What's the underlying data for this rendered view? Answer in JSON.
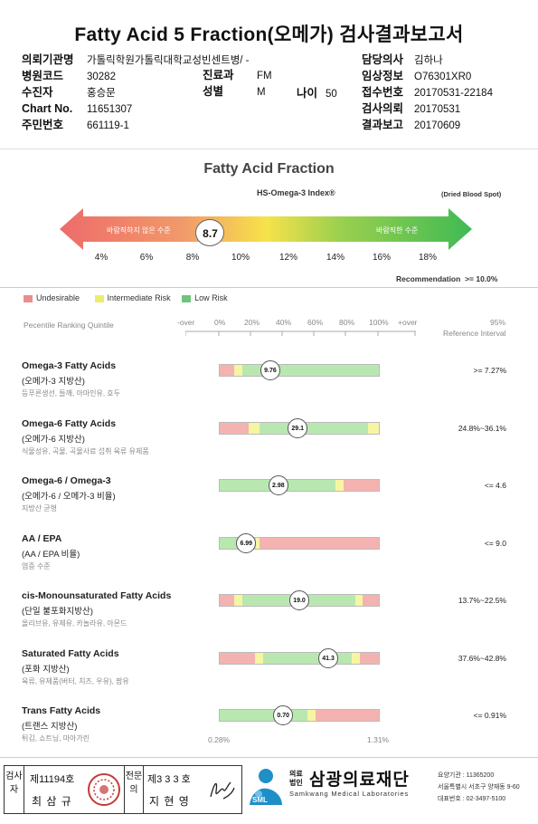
{
  "title": "Fatty Acid 5 Fraction(오메가) 검사결과보고서",
  "header": {
    "left": [
      {
        "label": "의뢰기관명",
        "value": "가톨릭학원가톨릭대학교성빈센트병/ -"
      },
      {
        "label": "병원코드",
        "value": "30282"
      },
      {
        "label": "수진자",
        "value": "홍승문"
      },
      {
        "label": "Chart No.",
        "value": "11651307"
      },
      {
        "label": "주민번호",
        "value": "661119-1"
      }
    ],
    "mid": [
      {
        "label": "진료과",
        "value": "FM"
      },
      {
        "label": "성별",
        "value": "M"
      }
    ],
    "age": {
      "label": "나이",
      "value": "50"
    },
    "right": [
      {
        "label": "담당의사",
        "value": "김하나"
      },
      {
        "label": "임상정보",
        "value": "O76301XR0"
      },
      {
        "label": "접수번호",
        "value": "20170531-22184"
      },
      {
        "label": "검사의뢰",
        "value": "20170531"
      },
      {
        "label": "결과보고",
        "value": "20170609"
      }
    ]
  },
  "fraction": {
    "title": "Fatty Acid Fraction",
    "index_label": "HS-Omega-3 Index®",
    "sample_label": "(Dried Blood Spot)",
    "arrow_left_text": "바람직하지 않은 수준",
    "arrow_right_text": "바람직한 수준",
    "value": "8.7",
    "value_num": 8.7,
    "ticks": [
      "4%",
      "6%",
      "8%",
      "10%",
      "12%",
      "14%",
      "16%",
      "18%"
    ],
    "recommendation_label": "Recommendation",
    "recommendation_value": ">= 10.0%"
  },
  "legend": [
    {
      "label": "Undesirable",
      "color": "#f2a0a0"
    },
    {
      "label": "Intermediate Risk",
      "color": "#f4f07a"
    },
    {
      "label": "Low Risk",
      "color": "#6fc47a"
    }
  ],
  "scale": {
    "title": "Pecentile Ranking Quintile",
    "labels": [
      "-over",
      "0%",
      "20%",
      "40%",
      "60%",
      "80%",
      "100%",
      "+over"
    ],
    "ref_title_1": "95%",
    "ref_title_2": "Reference Interval",
    "bottom_left": "0.28%",
    "bottom_right": "1.31%"
  },
  "colors": {
    "red": "#f4b3b0",
    "yellow": "#f6f5a2",
    "green": "#b8e8b0"
  },
  "rows": [
    {
      "title": "Omega-3 Fatty Acids",
      "sub": "(오메가-3 지방산)",
      "desc": "등푸른생선, 들깨, 아마인유, 호두",
      "segments": [
        [
          "red",
          9
        ],
        [
          "yellow",
          5
        ],
        [
          "green",
          86
        ]
      ],
      "value": "9.76",
      "marker_pct": 32,
      "ref": ">= 7.27%"
    },
    {
      "title": "Omega-6 Fatty Acids",
      "sub": "(오메가-6 지방산)",
      "desc": "식물성유, 곡물, 곡물사료 섭취 육류 유제품",
      "segments": [
        [
          "red",
          18
        ],
        [
          "yellow",
          7
        ],
        [
          "green",
          68
        ],
        [
          "yellow",
          7
        ]
      ],
      "value": "29.1",
      "marker_pct": 49,
      "ref": "24.8%~36.1%"
    },
    {
      "title": "Omega-6 / Omega-3",
      "sub": "(오메가-6 / 오메가-3 비율)",
      "desc": "지방산 균형",
      "segments": [
        [
          "green",
          73
        ],
        [
          "yellow",
          5
        ],
        [
          "red",
          22
        ]
      ],
      "value": "2.98",
      "marker_pct": 37,
      "ref": "<= 4.6"
    },
    {
      "title": "AA / EPA",
      "sub": "(AA / EPA 비율)",
      "desc": "염증 수준",
      "segments": [
        [
          "green",
          23
        ],
        [
          "yellow",
          2
        ],
        [
          "red",
          75
        ]
      ],
      "value": "6.99",
      "marker_pct": 17,
      "ref": "<= 9.0"
    },
    {
      "title": "cis-Monounsaturated Fatty Acids",
      "sub": "(단일 불포화지방산)",
      "desc": "올리브유, 유제유, 카놀라유, 아몬드",
      "segments": [
        [
          "red",
          9
        ],
        [
          "yellow",
          5
        ],
        [
          "green",
          71
        ],
        [
          "yellow",
          5
        ],
        [
          "red",
          10
        ]
      ],
      "value": "19.0",
      "marker_pct": 50,
      "ref": "13.7%~22.5%"
    },
    {
      "title": "Saturated Fatty Acids",
      "sub": "(포화 지방산)",
      "desc": "육류, 유제품(버터, 치즈, 우유), 팜유",
      "segments": [
        [
          "red",
          22
        ],
        [
          "yellow",
          5
        ],
        [
          "green",
          56
        ],
        [
          "yellow",
          5
        ],
        [
          "red",
          12
        ]
      ],
      "value": "41.3",
      "marker_pct": 68,
      "ref": "37.6%~42.8%"
    },
    {
      "title": "Trans Fatty Acids",
      "sub": "(트랜스 지방산)",
      "desc": "튀김, 쇼트닝, 마아가린",
      "segments": [
        [
          "green",
          55
        ],
        [
          "yellow",
          5
        ],
        [
          "red",
          40
        ]
      ],
      "value": "0.70",
      "marker_pct": 40,
      "ref": "<= 0.91%"
    }
  ],
  "footer": {
    "inspector_label": "검사자",
    "inspector_no": "제11194호",
    "inspector_name": "최 삼 규",
    "doctor_label": "전문의",
    "doctor_no": "제3 3 3 호",
    "doctor_name": "지 현 영",
    "org_prefix_1": "의료",
    "org_prefix_2": "법인",
    "org_name": "삼광의료재단",
    "org_en": "Samkwang Medical Laboratories",
    "logo_text": "SML",
    "info_1": "요양기관 : 11365200",
    "info_2": "서울특별시 서초구 양재동 9-60",
    "info_3": "대표번호 : 02-3497-5100"
  }
}
